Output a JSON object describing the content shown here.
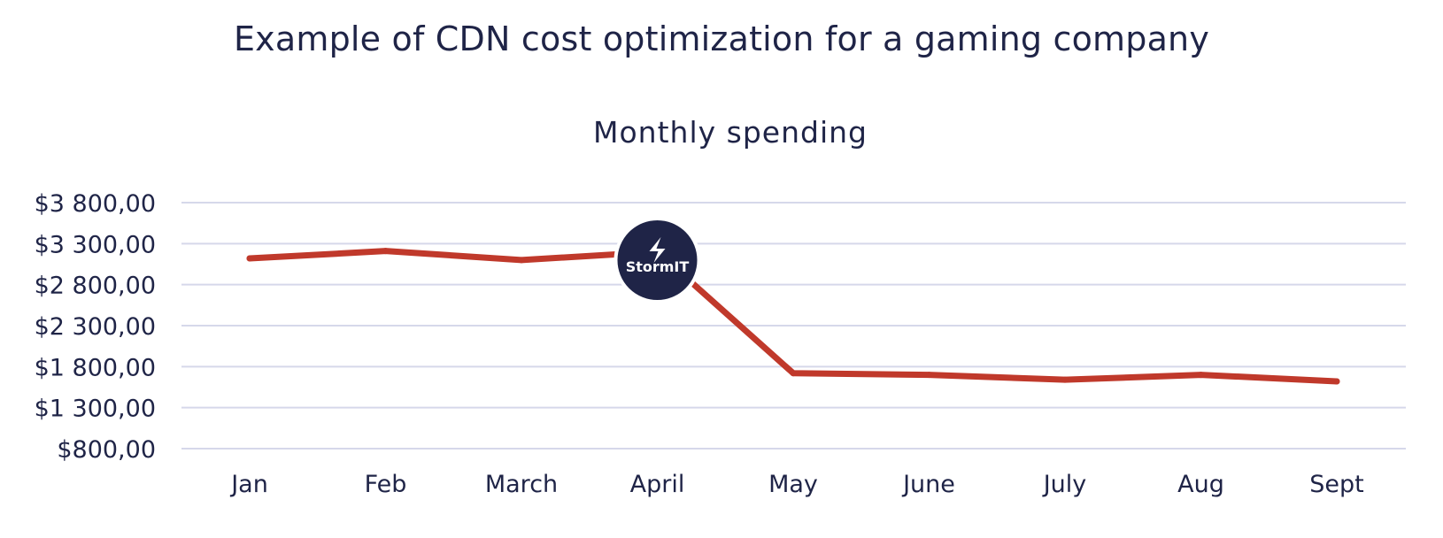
{
  "page": {
    "title": "Example of CDN cost optimization for a gaming company"
  },
  "chart_data": {
    "type": "line",
    "title": "Monthly spending",
    "xlabel": "",
    "ylabel": "",
    "categories": [
      "Jan",
      "Feb",
      "March",
      "April",
      "May",
      "June",
      "July",
      "Aug",
      "Sept"
    ],
    "series": [
      {
        "values": [
          3120,
          3210,
          3100,
          3200,
          1720,
          1700,
          1640,
          1700,
          1620
        ],
        "color": "#c0392b"
      }
    ],
    "ylim": [
      800,
      3800
    ],
    "yticks": [
      800,
      1300,
      1800,
      2300,
      2800,
      3300,
      3800
    ],
    "ytick_labels": [
      "$800,00",
      "$1 300,00",
      "$1 800,00",
      "$2 300,00",
      "$2 800,00",
      "$3 300,00",
      "$3 800,00"
    ],
    "grid": true,
    "legend": "none"
  },
  "badge": {
    "logo_text": "StormIT",
    "icon": "lightning-bolt-icon",
    "color": "#1f2447",
    "category": "April"
  }
}
